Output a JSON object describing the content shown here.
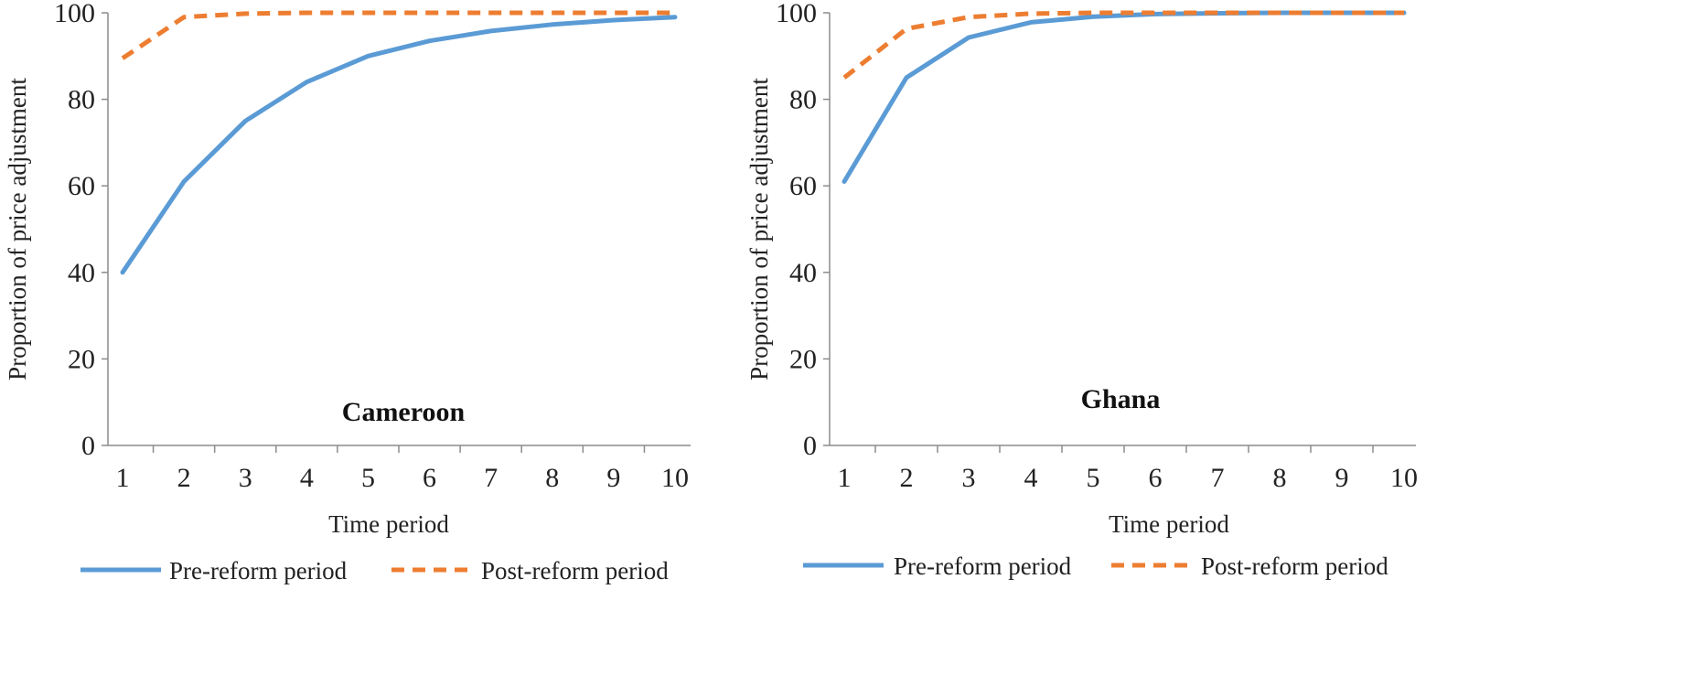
{
  "colors": {
    "pre": "#5b9bd5",
    "post": "#ed7d31",
    "axis": "#8c8c8c"
  },
  "chart_data": [
    {
      "type": "line",
      "title": "Cameroon",
      "xlabel": "Time period",
      "ylabel": "Proportion of price adjustment",
      "x": [
        1,
        2,
        3,
        4,
        5,
        6,
        7,
        8,
        9,
        10
      ],
      "ylim": [
        0,
        100
      ],
      "yticks": [
        "0",
        "20",
        "40",
        "60",
        "80",
        "100"
      ],
      "xticks": [
        "1",
        "2",
        "3",
        "4",
        "5",
        "6",
        "7",
        "8",
        "9",
        "10"
      ],
      "grid": false,
      "legend_position": "bottom",
      "series": [
        {
          "name": "Pre-reform period",
          "style": "solid",
          "values": [
            40,
            61,
            75,
            84,
            90,
            93.5,
            95.8,
            97.3,
            98.3,
            99
          ]
        },
        {
          "name": "Post-reform period",
          "style": "dashed",
          "values": [
            89.5,
            99,
            99.8,
            100,
            100,
            100,
            100,
            100,
            100,
            100
          ]
        }
      ]
    },
    {
      "type": "line",
      "title": "Ghana",
      "xlabel": "Time period",
      "ylabel": "Proportion of price adjustment",
      "x": [
        1,
        2,
        3,
        4,
        5,
        6,
        7,
        8,
        9,
        10
      ],
      "ylim": [
        0,
        100
      ],
      "yticks": [
        "0",
        "20",
        "40",
        "60",
        "80",
        "100"
      ],
      "xticks": [
        "1",
        "2",
        "3",
        "4",
        "5",
        "6",
        "7",
        "8",
        "9",
        "10"
      ],
      "grid": false,
      "legend_position": "bottom",
      "series": [
        {
          "name": "Pre-reform period",
          "style": "solid",
          "values": [
            61,
            85,
            94.3,
            97.8,
            99.1,
            99.7,
            99.9,
            100,
            100,
            100
          ]
        },
        {
          "name": "Post-reform period",
          "style": "dashed",
          "values": [
            85,
            96.3,
            99,
            99.8,
            100,
            100,
            100,
            100,
            100,
            100
          ]
        }
      ]
    }
  ]
}
